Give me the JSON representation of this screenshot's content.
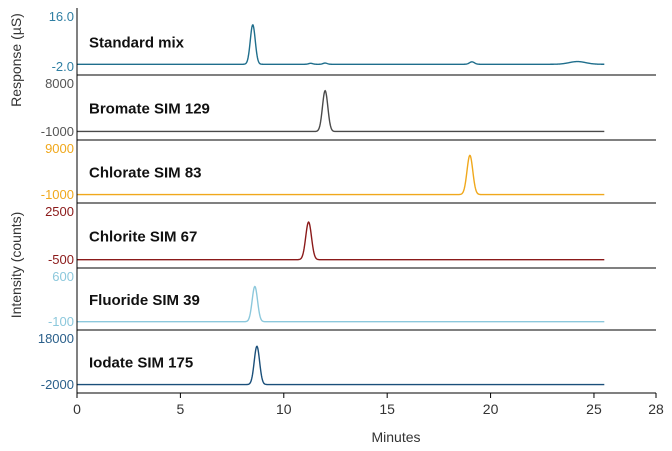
{
  "chart_data": {
    "type": "line",
    "xlabel": "Minutes",
    "ylabel_top": "Response (µS)",
    "ylabel_bottom": "Intensity (counts)",
    "xlim": [
      0,
      28
    ],
    "xticks": [
      0,
      5,
      10,
      15,
      20,
      25,
      28
    ],
    "panels": [
      {
        "name": "Standard mix",
        "color": "#1f6e8c",
        "tick_color": "#2f7fa3",
        "ylim": [
          -2.0,
          16.0
        ],
        "ytick_labels": [
          "16.0",
          "-2.0"
        ],
        "baseline": -1.0,
        "peaks": [
          {
            "rt": 8.5,
            "height": 14.5,
            "width": 0.12
          },
          {
            "rt": 11.3,
            "height": 0.35,
            "width": 0.1
          },
          {
            "rt": 12.0,
            "height": 0.45,
            "width": 0.1
          },
          {
            "rt": 19.1,
            "height": 0.9,
            "width": 0.12
          },
          {
            "rt": 24.2,
            "height": 1.0,
            "width": 0.4
          }
        ]
      },
      {
        "name": "Bromate SIM 129",
        "color": "#4a4a4a",
        "tick_color": "#555555",
        "ylim": [
          -1000,
          8000
        ],
        "ytick_labels": [
          "8000",
          "-1000"
        ],
        "baseline": -900,
        "peaks": [
          {
            "rt": 12.0,
            "height": 7800,
            "width": 0.13
          }
        ]
      },
      {
        "name": "Chlorate SIM 83",
        "color": "#f0a81c",
        "tick_color": "#f0a81c",
        "ylim": [
          -1000,
          9000
        ],
        "ytick_labels": [
          "9000",
          "-1000"
        ],
        "baseline": -900,
        "peaks": [
          {
            "rt": 19.0,
            "height": 8700,
            "width": 0.14
          }
        ]
      },
      {
        "name": "Chlorite SIM 67",
        "color": "#8b1a1a",
        "tick_color": "#8b1a1a",
        "ylim": [
          -500,
          2500
        ],
        "ytick_labels": [
          "2500",
          "-500"
        ],
        "baseline": -480,
        "peaks": [
          {
            "rt": 11.2,
            "height": 2400,
            "width": 0.14
          }
        ]
      },
      {
        "name": "Fluoride SIM 39",
        "color": "#8cc8dc",
        "tick_color": "#8cc8dc",
        "ylim": [
          -100,
          600
        ],
        "ytick_labels": [
          "600",
          "-100"
        ],
        "baseline": -95,
        "peaks": [
          {
            "rt": 8.6,
            "height": 560,
            "width": 0.13
          }
        ]
      },
      {
        "name": "Iodate SIM 175",
        "color": "#1a4f7a",
        "tick_color": "#2a5f8a",
        "ylim": [
          -2000,
          18000
        ],
        "ytick_labels": [
          "18000",
          "-2000"
        ],
        "baseline": -1800,
        "peaks": [
          {
            "rt": 8.7,
            "height": 17000,
            "width": 0.13
          }
        ]
      }
    ],
    "grid": false,
    "legend": "none"
  }
}
